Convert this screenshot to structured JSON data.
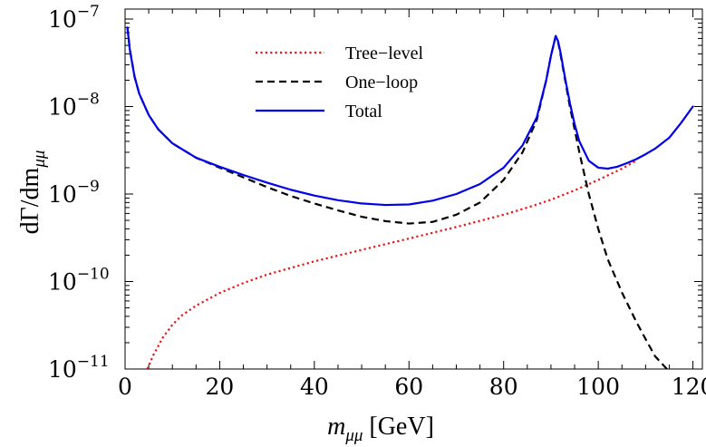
{
  "chart_data": {
    "type": "line",
    "xlabel": {
      "main": "m",
      "sub": "μμ",
      "suffix": " [GeV]"
    },
    "ylabel": {
      "main": "dΓ/dm",
      "sub": "μμ"
    },
    "xlim": [
      0,
      122
    ],
    "ylim": [
      1e-11,
      1.3e-07
    ],
    "yscale": "log",
    "grid": false,
    "legend_position": "top-center",
    "x_ticks": [
      {
        "value": 0,
        "label": "0"
      },
      {
        "value": 20,
        "label": "20"
      },
      {
        "value": 40,
        "label": "40"
      },
      {
        "value": 60,
        "label": "60"
      },
      {
        "value": 80,
        "label": "80"
      },
      {
        "value": 100,
        "label": "100"
      },
      {
        "value": 120,
        "label": "120"
      }
    ],
    "y_ticks": [
      {
        "value": 1e-11,
        "base": "10",
        "exp": "−11"
      },
      {
        "value": 1e-10,
        "base": "10",
        "exp": "−10"
      },
      {
        "value": 1e-09,
        "base": "10",
        "exp": "−9"
      },
      {
        "value": 1e-08,
        "base": "10",
        "exp": "−8"
      },
      {
        "value": 1e-07,
        "base": "10",
        "exp": "−7"
      }
    ],
    "series": [
      {
        "name": "Tree−level",
        "color": "#ee1111",
        "style": "dotted",
        "x": [
          4.7,
          6,
          8,
          10,
          12,
          15,
          20,
          25,
          30,
          40,
          50,
          60,
          70,
          80,
          85,
          90,
          95,
          100,
          105,
          108
        ],
        "y": [
          1e-11,
          1.45e-11,
          2.3e-11,
          3.2e-11,
          4.1e-11,
          5.3e-11,
          7.4e-11,
          9.6e-11,
          1.2e-10,
          1.7e-10,
          2.3e-10,
          3.1e-10,
          4.2e-10,
          5.8e-10,
          7e-10,
          8.6e-10,
          1.1e-09,
          1.45e-09,
          1.95e-09,
          2.4e-09
        ]
      },
      {
        "name": "One−loop",
        "color": "#000000",
        "style": "dashed",
        "x": [
          0.5,
          1,
          2,
          3,
          5,
          7,
          10,
          15,
          20,
          25,
          30,
          35,
          40,
          45,
          50,
          55,
          60,
          65,
          70,
          75,
          80,
          84,
          87,
          89,
          90,
          91,
          91.5,
          92,
          93,
          94,
          95,
          96,
          98,
          100,
          102,
          105,
          108,
          110,
          112,
          114.5
        ],
        "y": [
          8e-08,
          4.5e-08,
          2.2e-08,
          1.4e-08,
          8e-09,
          5.5e-09,
          3.8e-09,
          2.6e-09,
          2e-09,
          1.55e-09,
          1.2e-09,
          9.5e-10,
          7.8e-10,
          6.5e-10,
          5.5e-10,
          4.9e-10,
          4.6e-10,
          4.8e-10,
          5.8e-10,
          8e-10,
          1.45e-09,
          3e-09,
          7e-09,
          2e-08,
          3.8e-08,
          6.4e-08,
          5.5e-08,
          4e-08,
          2e-08,
          1e-08,
          5.5e-09,
          3e-09,
          1e-09,
          4e-10,
          1.8e-10,
          7.5e-11,
          3.5e-11,
          2.2e-11,
          1.4e-11,
          1e-11
        ]
      },
      {
        "name": "Total",
        "color": "#0000ee",
        "style": "solid",
        "x": [
          0.5,
          1,
          2,
          3,
          5,
          7,
          10,
          15,
          20,
          25,
          30,
          35,
          40,
          45,
          50,
          55,
          60,
          65,
          70,
          75,
          80,
          84,
          87,
          89,
          90,
          91,
          91.5,
          92,
          93,
          94,
          95,
          96,
          98,
          100,
          102,
          104,
          106,
          108,
          110,
          112,
          115,
          117.5,
          120
        ],
        "y": [
          8e-08,
          4.5e-08,
          2.2e-08,
          1.4e-08,
          8e-09,
          5.5e-09,
          3.8e-09,
          2.6e-09,
          2.05e-09,
          1.65e-09,
          1.35e-09,
          1.12e-09,
          9.6e-10,
          8.5e-10,
          7.8e-10,
          7.5e-10,
          7.6e-10,
          8.4e-10,
          1e-09,
          1.3e-09,
          2e-09,
          3.6e-09,
          7.5e-09,
          2e-08,
          3.8e-08,
          6.4e-08,
          5.6e-08,
          4.2e-08,
          2.1e-08,
          1.1e-08,
          6.3e-09,
          4e-09,
          2.4e-09,
          2e-09,
          1.95e-09,
          2.05e-09,
          2.25e-09,
          2.5e-09,
          2.85e-09,
          3.3e-09,
          4.4e-09,
          6.5e-09,
          1e-08
        ]
      }
    ]
  }
}
